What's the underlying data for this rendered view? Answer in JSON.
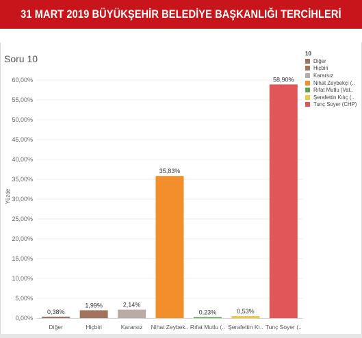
{
  "banner": {
    "title": "31 MART 2019 BÜYÜKŞEHİR BELEDİYE BAŞKANLIĞI TERCİHLERİ"
  },
  "colors": {
    "banner": "#c8151b",
    "Diğer": "#9c7462",
    "Hiçbiri": "#a3745c",
    "Kararsız": "#b9aca5",
    "Nihat Zeybekçi": "#f28e2b",
    "Rıfat Mutlu": "#59a14f",
    "Şerafettin Kılıç": "#edc948",
    "Tunç Soyer": "#e15759"
  },
  "chart_data": {
    "type": "bar",
    "title": "Soru 10",
    "xlabel": "",
    "ylabel": "Yüzde",
    "ylim": [
      0,
      63
    ],
    "yticks": [
      "0,00%",
      "5,00%",
      "10,00%",
      "15,00%",
      "20,00%",
      "25,00%",
      "30,00%",
      "35,00%",
      "40,00%",
      "45,00%",
      "50,00%",
      "55,00%",
      "60,00%"
    ],
    "ytick_values": [
      0,
      5,
      10,
      15,
      20,
      25,
      30,
      35,
      40,
      45,
      50,
      55,
      60
    ],
    "grid": true,
    "legend_position": "right",
    "categories": [
      "Diğer",
      "Hiçbiri",
      "Kararsız",
      "Nihat Zeybek..",
      "Rıfat Mutlu (..",
      "Şerafettin Kı..",
      "Tunç Soyer (.."
    ],
    "values": [
      0.38,
      1.99,
      2.14,
      35.83,
      0.23,
      0.53,
      58.9
    ],
    "value_labels": [
      "0,38%",
      "1,99%",
      "2,14%",
      "35,83%",
      "0,23%",
      "0,53%",
      "58,90%"
    ],
    "bar_colors": [
      "#9c7462",
      "#a3745c",
      "#b9aca5",
      "#f28e2b",
      "#59a14f",
      "#edc948",
      "#e15759"
    ],
    "legend": {
      "title": "10",
      "items": [
        {
          "label": "Diğer",
          "color": "#9c7462"
        },
        {
          "label": "Hiçbiri",
          "color": "#a3745c"
        },
        {
          "label": "Kararsız",
          "color": "#b9aca5"
        },
        {
          "label": "Nihat Zeybekçi (..",
          "color": "#f28e2b"
        },
        {
          "label": "Rıfat Mutlu (Vat..",
          "color": "#59a14f"
        },
        {
          "label": "Şerafettin Kılıç (..",
          "color": "#edc948"
        },
        {
          "label": "Tunç Soyer (CHP)",
          "color": "#e15759"
        }
      ]
    }
  }
}
